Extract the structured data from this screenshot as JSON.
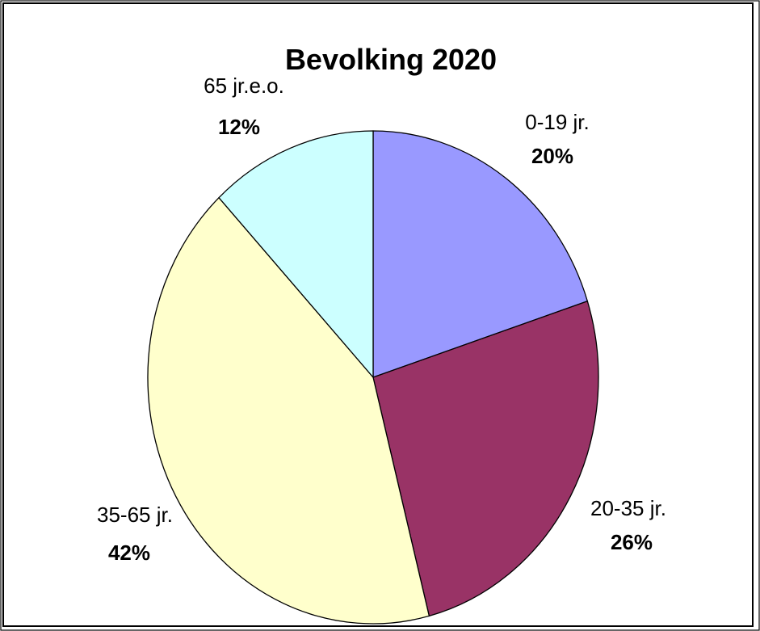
{
  "chart_data": {
    "type": "pie",
    "title": "Bevolking 2020",
    "categories": [
      "0-19 jr.",
      "20-35 jr.",
      "35-65 jr.",
      "65 jr.e.o."
    ],
    "values": [
      20,
      26,
      42,
      12
    ],
    "value_labels": [
      "20%",
      "26%",
      "42%",
      "12%"
    ],
    "colors": [
      "#9999FF",
      "#993366",
      "#FFFFCC",
      "#CCFFFF"
    ],
    "start_angle": "12 o'clock",
    "direction": "clockwise",
    "legend": "none",
    "data_labels": "category name and percentage next to each slice"
  }
}
